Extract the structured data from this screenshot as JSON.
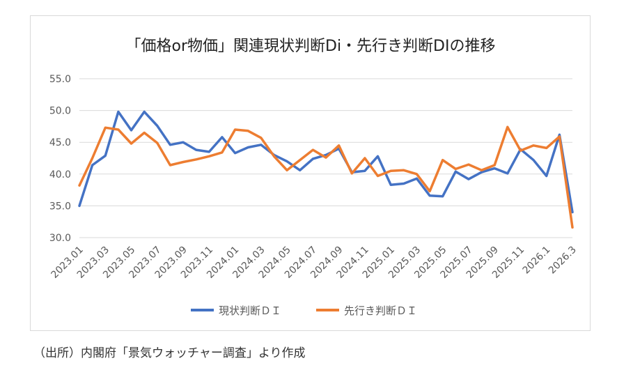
{
  "chart_data": {
    "type": "line",
    "title": "「価格or物価」関連現状判断Di・先行き判断DIの推移",
    "xlabel": "",
    "ylabel": "",
    "ylim": [
      30.0,
      55.0
    ],
    "yticks": [
      "30.0",
      "35.0",
      "40.0",
      "45.0",
      "50.0",
      "55.0"
    ],
    "y_tick_values": [
      30,
      35,
      40,
      45,
      50,
      55
    ],
    "grid": true,
    "legend_position": "bottom",
    "x": [
      "2023.01",
      "2023.02",
      "2023.03",
      "2023.04",
      "2023.05",
      "2023.06",
      "2023.07",
      "2023.08",
      "2023.09",
      "2023.10",
      "2023.11",
      "2023.12",
      "2024.01",
      "2024.02",
      "2024.03",
      "2024.04",
      "2024.05",
      "2024.06",
      "2024.07",
      "2024.08",
      "2024.09",
      "2024.10",
      "2024.11",
      "2024.12",
      "2025.01",
      "2025.02",
      "2025.03",
      "2025.04",
      "2025.05",
      "2025.06",
      "2025.07",
      "2025.08",
      "2025.09",
      "2025.10",
      "2025.11",
      "2025.12",
      "2026.1",
      "2026.2",
      "2026.3"
    ],
    "x_tick_labels": [
      "2023.01",
      "2023.03",
      "2023.05",
      "2023.07",
      "2023.09",
      "2023.11",
      "2024.01",
      "2024.03",
      "2024.05",
      "2024.07",
      "2024.09",
      "2024.11",
      "2025.01",
      "2025.03",
      "2025.05",
      "2025.07",
      "2025.09",
      "2025.11",
      "2026.1",
      "2026.3"
    ],
    "series": [
      {
        "name": "現状判断ＤＩ",
        "color": "#4472c4",
        "values": [
          35.0,
          41.4,
          42.9,
          49.8,
          46.9,
          49.8,
          47.6,
          44.6,
          45.0,
          43.8,
          43.5,
          45.8,
          43.3,
          44.2,
          44.6,
          43.0,
          42.0,
          40.6,
          42.4,
          43.0,
          44.0,
          40.3,
          40.5,
          42.8,
          38.3,
          38.5,
          39.3,
          36.6,
          36.5,
          40.4,
          39.2,
          40.3,
          40.9,
          40.1,
          43.9,
          42.2,
          39.7,
          46.2,
          34.0
        ]
      },
      {
        "name": "先行き判断ＤＩ",
        "color": "#ed7d31",
        "values": [
          38.2,
          42.5,
          47.3,
          47.0,
          44.8,
          46.5,
          44.9,
          41.4,
          41.9,
          42.3,
          42.8,
          43.4,
          47.0,
          46.8,
          45.7,
          42.8,
          40.6,
          42.2,
          43.8,
          42.6,
          44.5,
          40.1,
          42.5,
          39.7,
          40.5,
          40.6,
          40.0,
          37.3,
          42.2,
          40.8,
          41.5,
          40.6,
          41.4,
          47.4,
          43.7,
          44.5,
          44.1,
          45.9,
          31.6
        ]
      }
    ]
  },
  "source_note": "（出所）内閣府「景気ウォッチャー調査」より作成"
}
